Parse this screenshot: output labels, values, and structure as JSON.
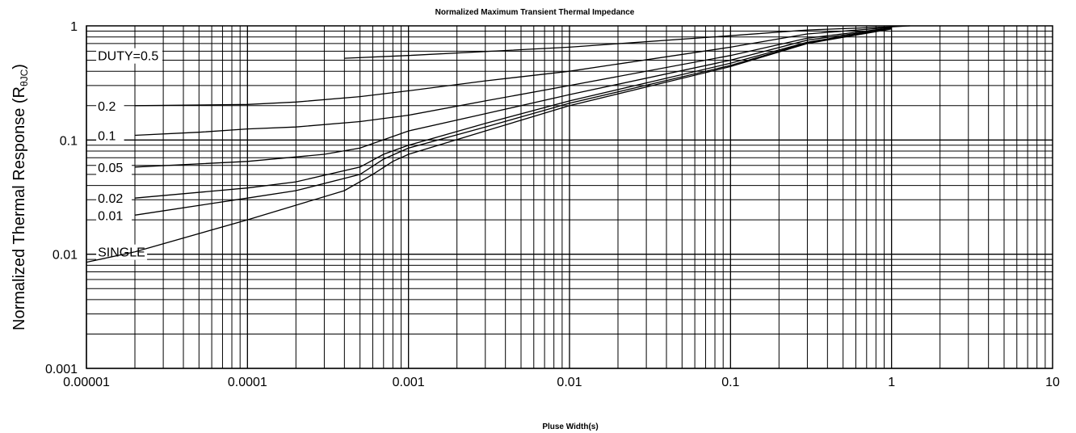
{
  "chart_data": {
    "type": "line",
    "title": "Normalized Maximum Transient Thermal Impedance",
    "xlabel": "Pluse Width(s)",
    "ylabel": {
      "main": "Normalized Thermal Response (R",
      "sub": "θJC",
      "close": ")"
    },
    "x_scale": "log",
    "y_scale": "log",
    "xlim": [
      1e-05,
      10
    ],
    "ylim": [
      0.001,
      1
    ],
    "x_ticks": [
      "0.00001",
      "0.0001",
      "0.001",
      "0.01",
      "0.1",
      "1",
      "10"
    ],
    "y_ticks": [
      "0.001",
      "0.01",
      "0.1",
      "1"
    ],
    "grid": true,
    "series": [
      {
        "name": "DUTY=0.5",
        "points": [
          [
            0.0004,
            0.52
          ],
          [
            0.001,
            0.55
          ],
          [
            0.01,
            0.65
          ],
          [
            0.1,
            0.82
          ],
          [
            0.3,
            0.92
          ],
          [
            1,
            0.98
          ],
          [
            1.3,
            1.0
          ]
        ]
      },
      {
        "name": "0.2",
        "points": [
          [
            2e-05,
            0.2
          ],
          [
            0.0001,
            0.205
          ],
          [
            0.0002,
            0.215
          ],
          [
            0.0005,
            0.24
          ],
          [
            0.001,
            0.27
          ],
          [
            0.003,
            0.33
          ],
          [
            0.01,
            0.4
          ],
          [
            0.1,
            0.65
          ],
          [
            0.3,
            0.85
          ],
          [
            1,
            0.97
          ]
        ]
      },
      {
        "name": "0.1",
        "points": [
          [
            2e-05,
            0.11
          ],
          [
            5e-05,
            0.117
          ],
          [
            0.0001,
            0.125
          ],
          [
            0.0002,
            0.13
          ],
          [
            0.0005,
            0.145
          ],
          [
            0.001,
            0.165
          ],
          [
            0.003,
            0.22
          ],
          [
            0.01,
            0.3
          ],
          [
            0.1,
            0.55
          ],
          [
            0.3,
            0.78
          ],
          [
            1,
            0.96
          ]
        ]
      },
      {
        "name": "0.05",
        "points": [
          [
            2e-05,
            0.058
          ],
          [
            0.0001,
            0.065
          ],
          [
            0.0003,
            0.075
          ],
          [
            0.0005,
            0.085
          ],
          [
            0.001,
            0.12
          ],
          [
            0.003,
            0.17
          ],
          [
            0.01,
            0.25
          ],
          [
            0.1,
            0.5
          ],
          [
            0.3,
            0.75
          ],
          [
            1,
            0.95
          ]
        ]
      },
      {
        "name": "0.02",
        "points": [
          [
            2e-05,
            0.031
          ],
          [
            0.0001,
            0.038
          ],
          [
            0.0002,
            0.043
          ],
          [
            0.0005,
            0.058
          ],
          [
            0.0007,
            0.075
          ],
          [
            0.001,
            0.09
          ],
          [
            0.003,
            0.14
          ],
          [
            0.01,
            0.22
          ],
          [
            0.1,
            0.47
          ],
          [
            0.3,
            0.72
          ],
          [
            1,
            0.95
          ]
        ]
      },
      {
        "name": "0.01",
        "points": [
          [
            2e-05,
            0.022
          ],
          [
            0.0001,
            0.031
          ],
          [
            0.0002,
            0.036
          ],
          [
            0.0005,
            0.05
          ],
          [
            0.0007,
            0.068
          ],
          [
            0.001,
            0.085
          ],
          [
            0.003,
            0.13
          ],
          [
            0.01,
            0.21
          ],
          [
            0.1,
            0.45
          ],
          [
            0.3,
            0.71
          ],
          [
            1,
            0.95
          ]
        ]
      },
      {
        "name": "SINGLE",
        "points": [
          [
            1e-05,
            0.0085
          ],
          [
            2e-05,
            0.0105
          ],
          [
            0.0001,
            0.02
          ],
          [
            0.0004,
            0.036
          ],
          [
            0.0006,
            0.05
          ],
          [
            0.0008,
            0.065
          ],
          [
            0.001,
            0.075
          ],
          [
            0.003,
            0.12
          ],
          [
            0.01,
            0.2
          ],
          [
            0.1,
            0.44
          ],
          [
            0.3,
            0.7
          ],
          [
            1,
            0.94
          ]
        ]
      }
    ],
    "series_label_text": [
      "DUTY=0.5",
      "0.2",
      "0.1",
      "0.05",
      "0.02",
      "0.01",
      "SINGLE"
    ]
  }
}
